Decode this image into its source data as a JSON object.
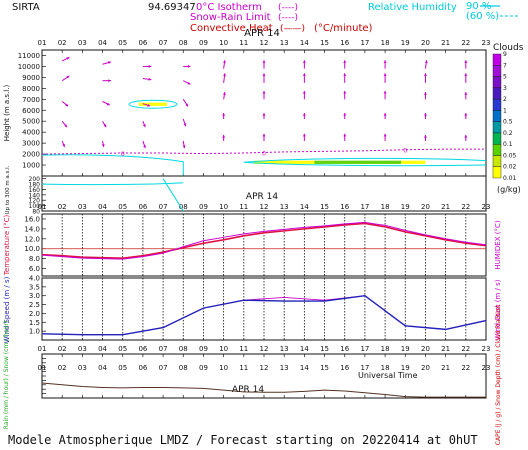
{
  "header": {
    "site": "SIRTA",
    "coords": "94.69347",
    "legend_isotherm": "0°C Isotherm",
    "legend_isotherm_sym": "(----)",
    "legend_snowrain": "Snow-Rain Limit",
    "legend_snowrain_sym": "(----)",
    "legend_convective": "Convective Heat",
    "legend_convective_sym": "(——)",
    "legend_convective_unit": "(°C/minute)",
    "legend_rh": "Relative Humidity",
    "rh90": "90 %",
    "rh60": "(60 %)"
  },
  "footer": "Modele Atmospherique LMDZ / Forecast starting on 20220414 at 0hUT",
  "hours": [
    "01",
    "02",
    "03",
    "04",
    "05",
    "06",
    "07",
    "08",
    "09",
    "10",
    "11",
    "12",
    "13",
    "14",
    "15",
    "16",
    "17",
    "18",
    "19",
    "20",
    "21",
    "22",
    "23"
  ],
  "date_label": "APR 14",
  "universal_time": "Universal Time",
  "colors": {
    "accent": "#cc00cc",
    "temperature": "#dd1144",
    "wind": "#2222bb",
    "rh": "#00d8e0",
    "precip": "#553322",
    "clouds_scale": [
      "#ffff00",
      "#c8e800",
      "#5ad200",
      "#00b450",
      "#009aa0",
      "#0070c8",
      "#2a3ad0",
      "#4a1ac0",
      "#7a10c8",
      "#a010d8",
      "#c000e8"
    ]
  },
  "clouds": {
    "title": "Clouds",
    "unit": "(g/kg)",
    "levels": [
      "0.01",
      "0.02",
      "0.05",
      "0.1",
      "0.2",
      "0.5",
      "1",
      "2",
      "3",
      "5",
      "7",
      "9"
    ]
  },
  "chart_data": [
    {
      "type": "heatmap",
      "name": "upper-profile",
      "ylabel": "Height (m a.s.l.)",
      "yticks": [
        1000,
        2000,
        3000,
        4000,
        5000,
        6000,
        7000,
        8000,
        9000,
        10000,
        11000
      ],
      "ytick_labels": [
        "1000",
        "2000",
        "3000",
        "4000",
        "5000",
        "6000",
        "7000",
        "8000",
        "9000",
        "10000",
        "11000"
      ],
      "ylim": [
        0,
        11500
      ],
      "wind_barbs": [
        {
          "x": 2,
          "y": 10500,
          "dx": 0.6,
          "dy": -0.3
        },
        {
          "x": 4,
          "y": 10200,
          "dx": 0.7,
          "dy": -0.2
        },
        {
          "x": 6,
          "y": 10000,
          "dx": 0.7,
          "dy": 0
        },
        {
          "x": 8,
          "y": 10000,
          "dx": 0.6,
          "dy": 0
        },
        {
          "x": 10,
          "y": 9800,
          "dx": 0.1,
          "dy": -0.7
        },
        {
          "x": 12,
          "y": 9800,
          "dx": 0,
          "dy": -0.7
        },
        {
          "x": 14,
          "y": 9800,
          "dx": 0,
          "dy": -0.7
        },
        {
          "x": 16,
          "y": 9800,
          "dx": 0,
          "dy": -0.7
        },
        {
          "x": 18,
          "y": 9800,
          "dx": 0,
          "dy": -0.7
        },
        {
          "x": 20,
          "y": 9800,
          "dx": 0.1,
          "dy": -0.7
        },
        {
          "x": 22,
          "y": 9800,
          "dx": 0,
          "dy": -0.7
        },
        {
          "x": 2,
          "y": 8700,
          "dx": 0.6,
          "dy": -0.4
        },
        {
          "x": 4,
          "y": 8700,
          "dx": 0.7,
          "dy": 0
        },
        {
          "x": 6,
          "y": 8900,
          "dx": 0.7,
          "dy": 0.1
        },
        {
          "x": 8,
          "y": 8700,
          "dx": 0.6,
          "dy": 0.3
        },
        {
          "x": 10,
          "y": 8500,
          "dx": 0.1,
          "dy": -0.8
        },
        {
          "x": 12,
          "y": 8500,
          "dx": 0,
          "dy": -0.8
        },
        {
          "x": 14,
          "y": 8500,
          "dx": 0,
          "dy": -0.8
        },
        {
          "x": 16,
          "y": 8500,
          "dx": 0,
          "dy": -0.8
        },
        {
          "x": 18,
          "y": 8500,
          "dx": 0,
          "dy": -0.8
        },
        {
          "x": 20,
          "y": 8500,
          "dx": 0,
          "dy": -0.8
        },
        {
          "x": 22,
          "y": 8500,
          "dx": 0,
          "dy": -0.8
        },
        {
          "x": 2,
          "y": 6800,
          "dx": 0.5,
          "dy": 0.4
        },
        {
          "x": 4,
          "y": 6800,
          "dx": 0.6,
          "dy": 0.3
        },
        {
          "x": 6,
          "y": 6600,
          "dx": 0.6,
          "dy": 0.2
        },
        {
          "x": 8,
          "y": 7000,
          "dx": 0.4,
          "dy": 0.6
        },
        {
          "x": 10,
          "y": 7000,
          "dx": 0.1,
          "dy": -0.6
        },
        {
          "x": 12,
          "y": 7000,
          "dx": 0,
          "dy": -0.7
        },
        {
          "x": 14,
          "y": 7000,
          "dx": 0,
          "dy": -0.7
        },
        {
          "x": 16,
          "y": 7000,
          "dx": 0,
          "dy": -0.7
        },
        {
          "x": 18,
          "y": 7000,
          "dx": 0,
          "dy": -0.7
        },
        {
          "x": 20,
          "y": 7000,
          "dx": 0,
          "dy": -0.6
        },
        {
          "x": 22,
          "y": 7000,
          "dx": 0,
          "dy": -0.6
        },
        {
          "x": 2,
          "y": 5000,
          "dx": 0.4,
          "dy": 0.5
        },
        {
          "x": 4,
          "y": 5000,
          "dx": 0.3,
          "dy": 0.5
        },
        {
          "x": 6,
          "y": 5000,
          "dx": 0.2,
          "dy": 0.5
        },
        {
          "x": 8,
          "y": 5200,
          "dx": 0.2,
          "dy": 0.6
        },
        {
          "x": 10,
          "y": 5200,
          "dx": 0,
          "dy": -0.5
        },
        {
          "x": 12,
          "y": 5200,
          "dx": 0,
          "dy": -0.5
        },
        {
          "x": 14,
          "y": 5200,
          "dx": 0,
          "dy": -0.5
        },
        {
          "x": 16,
          "y": 5200,
          "dx": 0,
          "dy": -0.5
        },
        {
          "x": 18,
          "y": 5200,
          "dx": 0,
          "dy": -0.5
        },
        {
          "x": 20,
          "y": 5200,
          "dx": 0,
          "dy": -0.5
        },
        {
          "x": 22,
          "y": 5200,
          "dx": 0,
          "dy": -0.5
        },
        {
          "x": 2,
          "y": 3200,
          "dx": 0.2,
          "dy": 0.5
        },
        {
          "x": 4,
          "y": 3200,
          "dx": 0.1,
          "dy": 0.5
        },
        {
          "x": 6,
          "y": 3200,
          "dx": 0.2,
          "dy": 0.6
        },
        {
          "x": 8,
          "y": 3200,
          "dx": 0.1,
          "dy": 0.6
        },
        {
          "x": 10,
          "y": 3200,
          "dx": 0,
          "dy": -0.5
        },
        {
          "x": 12,
          "y": 3200,
          "dx": 0,
          "dy": -0.6
        },
        {
          "x": 14,
          "y": 3200,
          "dx": 0,
          "dy": -0.6
        },
        {
          "x": 16,
          "y": 3200,
          "dx": 0,
          "dy": -0.6
        },
        {
          "x": 18,
          "y": 3200,
          "dx": 0,
          "dy": -0.6
        },
        {
          "x": 20,
          "y": 3200,
          "dx": 0,
          "dy": -0.5
        },
        {
          "x": 22,
          "y": 3200,
          "dx": 0,
          "dy": -0.5
        }
      ],
      "isotherm_0c": [
        [
          1,
          2000
        ],
        [
          3,
          2050
        ],
        [
          5,
          2100
        ],
        [
          7,
          2100
        ],
        [
          9,
          2050
        ],
        [
          11,
          2100
        ],
        [
          13,
          2200
        ],
        [
          15,
          2250
        ],
        [
          17,
          2300
        ],
        [
          19,
          2400
        ],
        [
          21,
          2450
        ],
        [
          23,
          2450
        ]
      ],
      "isotherm_labels": [
        {
          "x": 5,
          "y": 2100,
          "text": "0"
        },
        {
          "x": 12,
          "y": 2150,
          "text": "0"
        },
        {
          "x": 19,
          "y": 2420,
          "text": "0"
        }
      ],
      "cloud_patches": [
        {
          "x0": 5.8,
          "x1": 7.2,
          "y0": 6400,
          "y1": 6700,
          "color": "#ffff00"
        },
        {
          "x0": 11.5,
          "x1": 14.5,
          "y0": 1100,
          "y1": 1400,
          "color": "#ffff00"
        },
        {
          "x0": 14.5,
          "x1": 18.8,
          "y0": 1100,
          "y1": 1400,
          "color": "#5ad200"
        },
        {
          "x0": 18.8,
          "x1": 20,
          "y0": 1100,
          "y1": 1400,
          "color": "#ffff00"
        }
      ]
    },
    {
      "type": "line",
      "name": "low-level-profile",
      "ylabel": "Up to 300 m a.s.l.",
      "yticks": [
        80,
        100,
        120,
        140,
        160,
        180,
        200
      ],
      "ytick_labels": [
        "80",
        "100",
        "120",
        "140",
        "160",
        "180",
        "200"
      ],
      "ylim": [
        80,
        210
      ]
    },
    {
      "type": "line",
      "name": "temperature",
      "ylabel": "Temperature (°C)",
      "ylabel_right": "HUMIDEX (°C)",
      "yticks": [
        6,
        8,
        10,
        12,
        14,
        16
      ],
      "ytick_labels": [
        "6.0",
        "8.0",
        "10.0",
        "12.0",
        "14.0",
        "16.0"
      ],
      "ylim": [
        4.5,
        17
      ],
      "x": [
        1,
        2,
        3,
        4,
        5,
        6,
        7,
        8,
        9,
        10,
        11,
        12,
        13,
        14,
        15,
        16,
        17,
        18,
        19,
        20,
        21,
        22,
        23
      ],
      "series": [
        {
          "name": "Temperature",
          "values": [
            8.8,
            8.6,
            8.3,
            8.2,
            8.1,
            8.6,
            9.3,
            10.2,
            11.1,
            11.8,
            12.6,
            13.2,
            13.6,
            14.0,
            14.4,
            14.8,
            15.1,
            14.4,
            13.4,
            12.6,
            11.8,
            11.1,
            10.6
          ]
        },
        {
          "name": "Humidex",
          "values": [
            8.7,
            8.4,
            8.1,
            8.0,
            7.9,
            8.4,
            9.1,
            10.4,
            11.6,
            12.3,
            13.0,
            13.5,
            13.9,
            14.3,
            14.6,
            15.0,
            15.3,
            14.7,
            13.7,
            12.8,
            12.0,
            11.3,
            10.8
          ]
        }
      ],
      "reference_line": 10
    },
    {
      "type": "line",
      "name": "wind",
      "ylabel": "Wind Speed (m / s)",
      "ylabel_right": "Wind Gust (m / s)",
      "yticks": [
        1,
        1.5,
        2,
        2.5,
        3,
        3.5,
        4
      ],
      "ytick_labels": [
        "1.0",
        "1.5",
        "2.0",
        "2.5",
        "3.0",
        "3.5",
        "4.0"
      ],
      "ylim": [
        0.5,
        4
      ],
      "x": [
        1,
        3,
        5,
        7,
        9,
        11,
        13,
        15,
        17,
        19,
        21,
        23
      ],
      "series": [
        {
          "name": "Wind Speed",
          "values": [
            0.85,
            0.8,
            0.8,
            1.2,
            2.3,
            2.75,
            2.7,
            2.7,
            3.0,
            1.3,
            1.1,
            1.6
          ]
        },
        {
          "name": "Wind Gust",
          "values": [
            0.85,
            0.8,
            0.8,
            1.2,
            2.3,
            2.75,
            2.9,
            2.75,
            3.0,
            1.3,
            1.1,
            1.6
          ]
        }
      ]
    },
    {
      "type": "area",
      "name": "precip",
      "ylabel_left": "Rain (mm / hour) / Snow (cm / hour)",
      "ylabel_right": "CAPE (J / g) / Snow Depth (cm) / Cloud Fraction",
      "ylim": [
        0,
        1
      ],
      "yticks": [
        0,
        0.1,
        0.2,
        0.3,
        0.4,
        0.5,
        0.6,
        0.7,
        0.8,
        0.9,
        1
      ],
      "x": [
        1,
        2,
        3,
        4,
        5,
        6,
        7,
        8,
        9,
        10,
        11,
        12,
        13,
        14,
        15,
        16,
        17,
        18,
        19,
        20,
        21,
        22,
        23
      ],
      "series": [
        {
          "name": "Cloud Fraction",
          "values": [
            0.34,
            0.3,
            0.26,
            0.24,
            0.23,
            0.24,
            0.24,
            0.23,
            0.22,
            0.18,
            0.14,
            0.13,
            0.13,
            0.15,
            0.18,
            0.16,
            0.12,
            0.08,
            0.03,
            0.02,
            0.02,
            0.02,
            0.02
          ]
        }
      ]
    }
  ]
}
